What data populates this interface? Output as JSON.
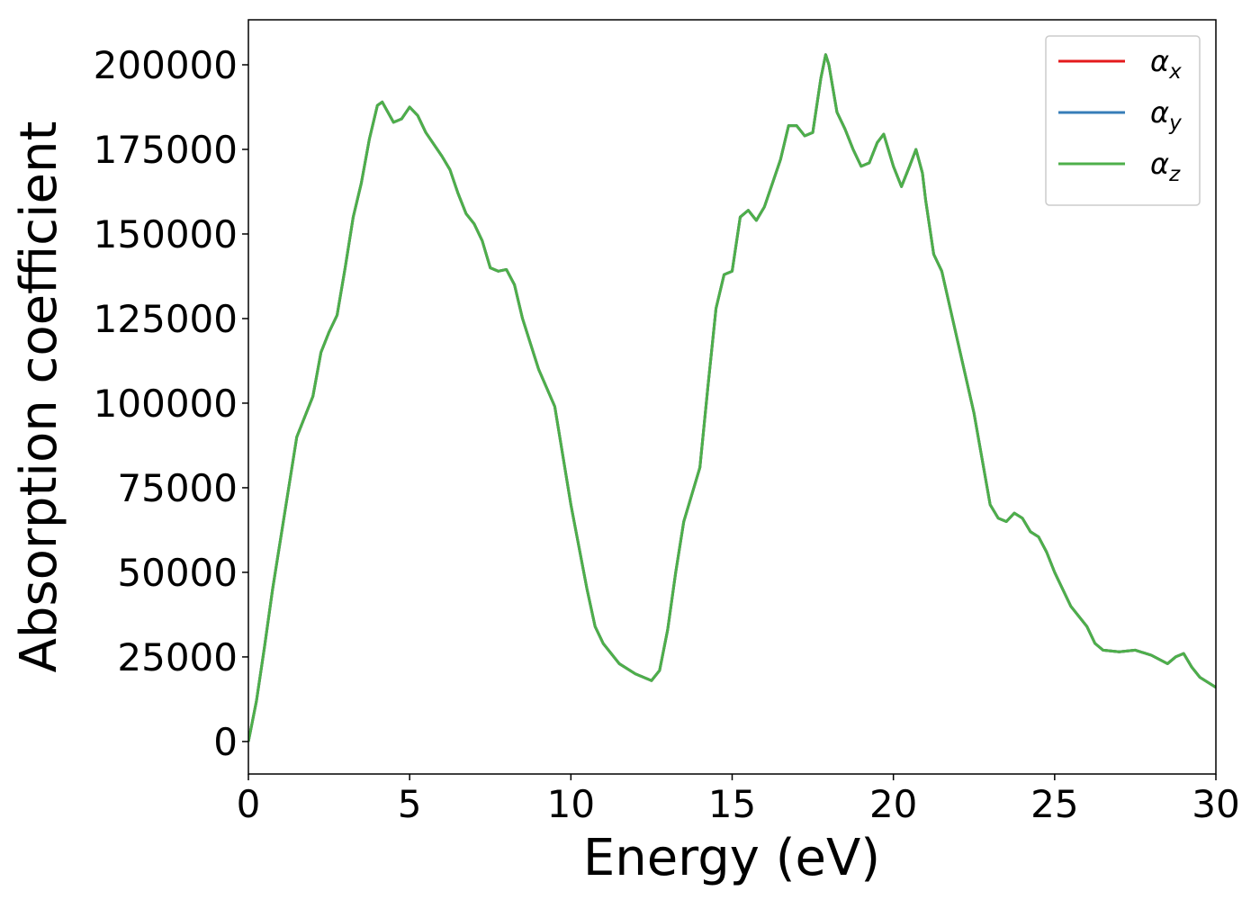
{
  "chart_data": {
    "type": "line",
    "xlabel": "Energy (eV)",
    "ylabel": "Absorption coefficient",
    "x": [
      0,
      0.25,
      0.5,
      0.75,
      1,
      1.25,
      1.5,
      1.75,
      2,
      2.25,
      2.5,
      2.75,
      3,
      3.25,
      3.5,
      3.75,
      4,
      4.15,
      4.5,
      4.75,
      5,
      5.25,
      5.5,
      6,
      6.25,
      6.5,
      6.75,
      7,
      7.25,
      7.5,
      7.75,
      8,
      8.25,
      8.5,
      9,
      9.5,
      10,
      10.5,
      10.75,
      11,
      11.5,
      12,
      12.5,
      12.75,
      13,
      13.25,
      13.5,
      14,
      14.25,
      14.5,
      14.75,
      15,
      15.25,
      15.5,
      15.75,
      16,
      16.25,
      16.5,
      16.75,
      17,
      17.25,
      17.5,
      17.75,
      17.9,
      18,
      18.25,
      18.5,
      18.75,
      19,
      19.25,
      19.5,
      19.7,
      20,
      20.25,
      20.5,
      20.7,
      20.9,
      21,
      21.25,
      21.5,
      22,
      22.5,
      23,
      23.25,
      23.5,
      23.75,
      24,
      24.25,
      24.5,
      24.75,
      25,
      25.5,
      26,
      26.25,
      26.5,
      27,
      27.5,
      28,
      28.5,
      28.75,
      29,
      29.25,
      29.5,
      30
    ],
    "series": [
      {
        "name": "αx",
        "color": "#e41a1c",
        "values": [
          0,
          12000,
          28000,
          45000,
          60000,
          75000,
          90000,
          96000,
          102000,
          115000,
          121000,
          126000,
          140000,
          155000,
          165000,
          178000,
          188000,
          189000,
          183000,
          184000,
          187500,
          185000,
          180000,
          173000,
          169000,
          162000,
          156000,
          153000,
          148000,
          140000,
          139000,
          139500,
          135000,
          125000,
          110000,
          99000,
          70000,
          45000,
          34000,
          29000,
          23000,
          20000,
          18000,
          21000,
          33000,
          50000,
          65000,
          81000,
          105000,
          128000,
          138000,
          139000,
          155000,
          157000,
          154000,
          158000,
          165000,
          172000,
          182000,
          182000,
          179000,
          180000,
          196000,
          203000,
          200000,
          186000,
          181000,
          175000,
          170000,
          171000,
          177000,
          179500,
          170000,
          164000,
          170000,
          175000,
          168000,
          160000,
          144000,
          139000,
          118000,
          97000,
          70000,
          66000,
          65000,
          67500,
          66000,
          62000,
          60500,
          56000,
          50000,
          40000,
          34000,
          29000,
          27000,
          26500,
          27000,
          25500,
          23000,
          25000,
          26000,
          22000,
          19000,
          16000
        ]
      },
      {
        "name": "αy",
        "color": "#377eb8",
        "values": [
          0,
          12000,
          28000,
          45000,
          60000,
          75000,
          90000,
          96000,
          102000,
          115000,
          121000,
          126000,
          140000,
          155000,
          165000,
          178000,
          188000,
          189000,
          183000,
          184000,
          187500,
          185000,
          180000,
          173000,
          169000,
          162000,
          156000,
          153000,
          148000,
          140000,
          139000,
          139500,
          135000,
          125000,
          110000,
          99000,
          70000,
          45000,
          34000,
          29000,
          23000,
          20000,
          18000,
          21000,
          33000,
          50000,
          65000,
          81000,
          105000,
          128000,
          138000,
          139000,
          155000,
          157000,
          154000,
          158000,
          165000,
          172000,
          182000,
          182000,
          179000,
          180000,
          196000,
          203000,
          200000,
          186000,
          181000,
          175000,
          170000,
          171000,
          177000,
          179500,
          170000,
          164000,
          170000,
          175000,
          168000,
          160000,
          144000,
          139000,
          118000,
          97000,
          70000,
          66000,
          65000,
          67500,
          66000,
          62000,
          60500,
          56000,
          50000,
          40000,
          34000,
          29000,
          27000,
          26500,
          27000,
          25500,
          23000,
          25000,
          26000,
          22000,
          19000,
          16000
        ]
      },
      {
        "name": "αz",
        "color": "#4daf4a",
        "values": [
          0,
          12000,
          28000,
          45000,
          60000,
          75000,
          90000,
          96000,
          102000,
          115000,
          121000,
          126000,
          140000,
          155000,
          165000,
          178000,
          188000,
          189000,
          183000,
          184000,
          187500,
          185000,
          180000,
          173000,
          169000,
          162000,
          156000,
          153000,
          148000,
          140000,
          139000,
          139500,
          135000,
          125000,
          110000,
          99000,
          70000,
          45000,
          34000,
          29000,
          23000,
          20000,
          18000,
          21000,
          33000,
          50000,
          65000,
          81000,
          105000,
          128000,
          138000,
          139000,
          155000,
          157000,
          154000,
          158000,
          165000,
          172000,
          182000,
          182000,
          179000,
          180000,
          196000,
          203000,
          200000,
          186000,
          181000,
          175000,
          170000,
          171000,
          177000,
          179500,
          170000,
          164000,
          170000,
          175000,
          168000,
          160000,
          144000,
          139000,
          118000,
          97000,
          70000,
          66000,
          65000,
          67500,
          66000,
          62000,
          60500,
          56000,
          50000,
          40000,
          34000,
          29000,
          27000,
          26500,
          27000,
          25500,
          23000,
          25000,
          26000,
          22000,
          19000,
          16000
        ]
      }
    ],
    "xlim": [
      0,
      30
    ],
    "xticks": [
      0,
      5,
      10,
      15,
      20,
      25,
      30
    ],
    "ylim": [
      -9600,
      213300
    ],
    "yticks": [
      0,
      25000,
      50000,
      75000,
      100000,
      125000,
      150000,
      175000,
      200000
    ],
    "grid": false,
    "legend": "upper right"
  }
}
